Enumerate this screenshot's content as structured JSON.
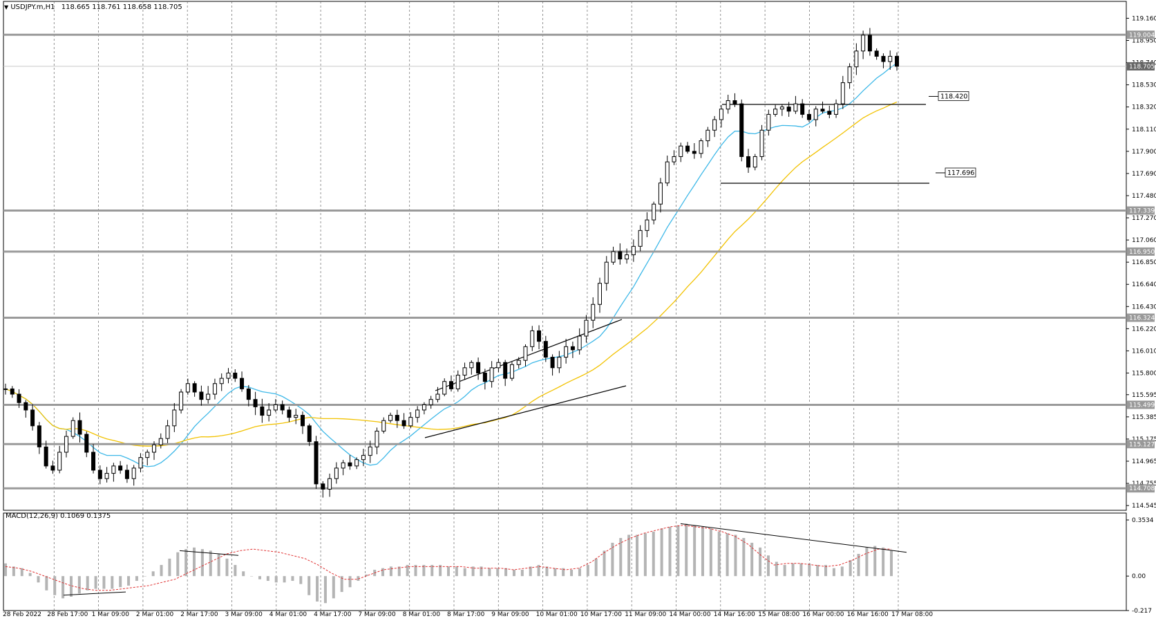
{
  "chart_data": {
    "type": "candlestick",
    "symbol_header": "USDJPY.m,H1",
    "ohlc_header": "118.665 118.761 118.658 118.705",
    "x_ticks": [
      "28 Feb 2022",
      "28 Feb 17:00",
      "1 Mar 09:00",
      "2 Mar 01:00",
      "2 Mar 17:00",
      "3 Mar 09:00",
      "4 Mar 01:00",
      "4 Mar 17:00",
      "7 Mar 09:00",
      "8 Mar 01:00",
      "8 Mar 17:00",
      "9 Mar 09:00",
      "10 Mar 01:00",
      "10 Mar 17:00",
      "11 Mar 09:00",
      "14 Mar 00:00",
      "14 Mar 16:00",
      "15 Mar 08:00",
      "16 Mar 00:00",
      "16 Mar 16:00",
      "17 Mar 08:00"
    ],
    "y_ticks": [
      "119.160",
      "118.950",
      "118.740",
      "118.530",
      "118.320",
      "118.110",
      "117.900",
      "117.690",
      "117.480",
      "117.270",
      "117.060",
      "116.850",
      "116.640",
      "116.430",
      "116.220",
      "116.010",
      "115.800",
      "115.595",
      "115.385",
      "115.175",
      "114.965",
      "114.755",
      "114.545"
    ],
    "ylim": [
      114.5,
      119.32
    ],
    "horizontal_levels": [
      "119.004",
      "117.339",
      "116.950",
      "116.324",
      "115.499",
      "115.127",
      "114.708"
    ],
    "current_price": "118.705",
    "range_box": {
      "top": "118.420",
      "bottom": "117.696"
    },
    "close_path": [
      115.65,
      115.6,
      115.52,
      115.45,
      115.3,
      115.1,
      114.92,
      114.88,
      115.05,
      115.2,
      115.35,
      115.22,
      115.05,
      114.88,
      114.8,
      114.85,
      114.92,
      114.88,
      114.8,
      114.9,
      115.0,
      115.05,
      115.12,
      115.18,
      115.3,
      115.45,
      115.62,
      115.7,
      115.62,
      115.55,
      115.6,
      115.7,
      115.75,
      115.8,
      115.75,
      115.65,
      115.55,
      115.48,
      115.4,
      115.45,
      115.5,
      115.45,
      115.38,
      115.4,
      115.3,
      115.15,
      114.75,
      114.7,
      114.8,
      114.9,
      114.95,
      114.92,
      114.98,
      115.02,
      115.1,
      115.25,
      115.35,
      115.4,
      115.35,
      115.3,
      115.38,
      115.45,
      115.5,
      115.55,
      115.6,
      115.72,
      115.65,
      115.78,
      115.85,
      115.9,
      115.8,
      115.72,
      115.85,
      115.9,
      115.75,
      115.88,
      115.92,
      116.05,
      116.2,
      116.1,
      115.95,
      115.85,
      115.95,
      116.05,
      116.02,
      116.15,
      116.3,
      116.45,
      116.65,
      116.85,
      116.95,
      116.88,
      116.92,
      117.0,
      117.15,
      117.25,
      117.4,
      117.6,
      117.8,
      117.85,
      117.95,
      117.9,
      117.88,
      118.0,
      118.1,
      118.2,
      118.3,
      118.38,
      118.35,
      117.85,
      117.75,
      117.85,
      118.1,
      118.25,
      118.3,
      118.32,
      118.28,
      118.35,
      118.25,
      118.2,
      118.3,
      118.28,
      118.25,
      118.35,
      118.55,
      118.7,
      118.85,
      119.0,
      118.85,
      118.8,
      118.75,
      118.8,
      118.705
    ],
    "indicators": [
      {
        "name": "MA blue",
        "color": "#3db8e8"
      },
      {
        "name": "MA yellow",
        "color": "#f2c200"
      }
    ],
    "macd": {
      "label": "MACD(12,26,9) 0.1069 0.1375",
      "y_ticks": [
        "0.3534",
        "0.00",
        "-0.217"
      ],
      "ylim": [
        -0.217,
        0.3534
      ],
      "hist": [
        0.08,
        0.06,
        0.05,
        0.02,
        -0.04,
        -0.09,
        -0.12,
        -0.14,
        -0.13,
        -0.11,
        -0.09,
        -0.08,
        -0.08,
        -0.08,
        -0.07,
        -0.06,
        -0.03,
        0.0,
        0.03,
        0.07,
        0.11,
        0.15,
        0.17,
        0.18,
        0.17,
        0.16,
        0.14,
        0.11,
        0.07,
        0.03,
        0.0,
        -0.02,
        -0.03,
        -0.04,
        -0.04,
        -0.03,
        -0.05,
        -0.12,
        -0.16,
        -0.17,
        -0.14,
        -0.1,
        -0.07,
        -0.03,
        0.01,
        0.04,
        0.05,
        0.06,
        0.06,
        0.07,
        0.07,
        0.07,
        0.07,
        0.07,
        0.06,
        0.06,
        0.05,
        0.06,
        0.06,
        0.05,
        0.05,
        0.05,
        0.04,
        0.04,
        0.06,
        0.07,
        0.06,
        0.05,
        0.05,
        0.04,
        0.05,
        0.07,
        0.11,
        0.16,
        0.21,
        0.24,
        0.26,
        0.26,
        0.27,
        0.28,
        0.3,
        0.31,
        0.32,
        0.33,
        0.32,
        0.31,
        0.3,
        0.28,
        0.27,
        0.26,
        0.24,
        0.21,
        0.18,
        0.13,
        0.09,
        0.07,
        0.08,
        0.08,
        0.08,
        0.07,
        0.07,
        0.05,
        0.06,
        0.1,
        0.14,
        0.18,
        0.19,
        0.18,
        0.16
      ],
      "signal": [
        0.06,
        0.05,
        0.03,
        0.0,
        -0.03,
        -0.06,
        -0.08,
        -0.09,
        -0.09,
        -0.08,
        -0.07,
        -0.06,
        -0.04,
        -0.02,
        0.02,
        0.06,
        0.1,
        0.14,
        0.16,
        0.17,
        0.16,
        0.15,
        0.13,
        0.11,
        0.07,
        0.02,
        -0.02,
        -0.02,
        0.01,
        0.04,
        0.05,
        0.06,
        0.06,
        0.06,
        0.06,
        0.06,
        0.05,
        0.05,
        0.05,
        0.04,
        0.05,
        0.06,
        0.05,
        0.04,
        0.05,
        0.09,
        0.15,
        0.2,
        0.24,
        0.27,
        0.29,
        0.31,
        0.32,
        0.31,
        0.3,
        0.28,
        0.25,
        0.2,
        0.13,
        0.07,
        0.08,
        0.08,
        0.07,
        0.06,
        0.07,
        0.1,
        0.14,
        0.17,
        0.17
      ]
    }
  }
}
